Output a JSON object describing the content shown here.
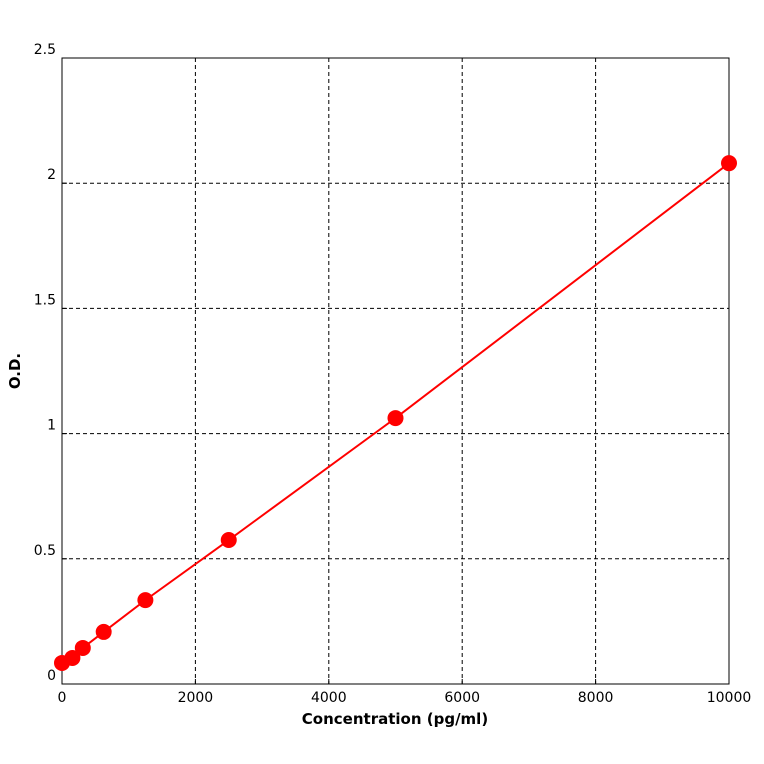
{
  "chart_data": {
    "type": "line",
    "xlabel": "Concentration (pg/ml)",
    "ylabel": "O.D.",
    "x": [
      0,
      156,
      312,
      625,
      1250,
      2500,
      5000,
      10000
    ],
    "series": [
      {
        "color": "#ff0000",
        "values": [
          0.084,
          0.104,
          0.144,
          0.208,
          0.335,
          0.575,
          1.062,
          2.08
        ]
      }
    ],
    "xlim": [
      0,
      10000
    ],
    "xticks": [
      0,
      2000,
      4000,
      6000,
      8000,
      10000
    ],
    "ylim": [
      0,
      2.5
    ],
    "yticks": [
      0,
      0.5,
      1,
      1.5,
      2,
      2.5
    ],
    "grid": true,
    "markers": true
  }
}
